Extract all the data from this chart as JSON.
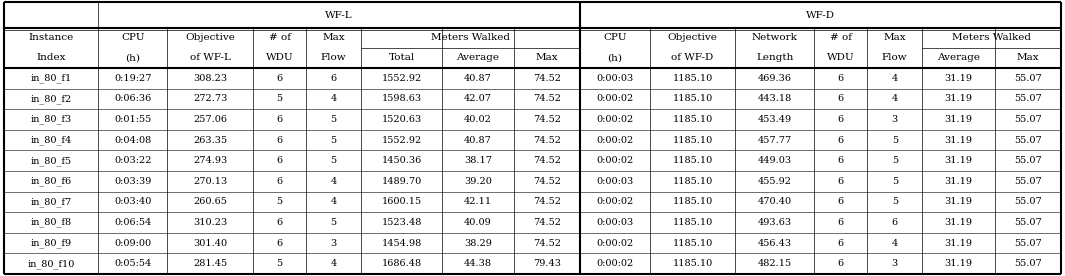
{
  "instances": [
    "in 80‑f1",
    "in 80‑f2",
    "in 80‑f3",
    "in 80‑f4",
    "in 80‑f5",
    "in 80‑f6",
    "in 80‑f7",
    "in 80‑f8",
    "in 80‑f9",
    "in 80‑f10"
  ],
  "inst_names": [
    "in_80_f1",
    "in_80_f2",
    "in_80_f3",
    "in_80_f4",
    "in_80_f5",
    "in_80_f6",
    "in_80_f7",
    "in_80_f8",
    "in_80_f9",
    "in_80_f10"
  ],
  "wfl_cpu": [
    "0:19:27",
    "0:06:36",
    "0:01:55",
    "0:04:08",
    "0:03:22",
    "0:03:39",
    "0:03:40",
    "0:06:54",
    "0:09:00",
    "0:05:54"
  ],
  "wfl_obj": [
    "308.23",
    "272.73",
    "257.06",
    "263.35",
    "274.93",
    "270.13",
    "260.65",
    "310.23",
    "301.40",
    "281.45"
  ],
  "wfl_wdu": [
    "6",
    "5",
    "6",
    "6",
    "6",
    "6",
    "5",
    "6",
    "6",
    "5"
  ],
  "wfl_flow": [
    "6",
    "4",
    "5",
    "5",
    "5",
    "4",
    "4",
    "5",
    "3",
    "4"
  ],
  "wfl_total": [
    "1552.92",
    "1598.63",
    "1520.63",
    "1552.92",
    "1450.36",
    "1489.70",
    "1600.15",
    "1523.48",
    "1454.98",
    "1686.48"
  ],
  "wfl_avg": [
    "40.87",
    "42.07",
    "40.02",
    "40.87",
    "38.17",
    "39.20",
    "42.11",
    "40.09",
    "38.29",
    "44.38"
  ],
  "wfl_max": [
    "74.52",
    "74.52",
    "74.52",
    "74.52",
    "74.52",
    "74.52",
    "74.52",
    "74.52",
    "74.52",
    "79.43"
  ],
  "wfd_cpu": [
    "0:00:03",
    "0:00:02",
    "0:00:02",
    "0:00:02",
    "0:00:02",
    "0:00:03",
    "0:00:02",
    "0:00:03",
    "0:00:02",
    "0:00:02"
  ],
  "wfd_obj": [
    "1185.10",
    "1185.10",
    "1185.10",
    "1185.10",
    "1185.10",
    "1185.10",
    "1185.10",
    "1185.10",
    "1185.10",
    "1185.10"
  ],
  "wfd_net": [
    "469.36",
    "443.18",
    "453.49",
    "457.77",
    "449.03",
    "455.92",
    "470.40",
    "493.63",
    "456.43",
    "482.15"
  ],
  "wfd_wdu": [
    "6",
    "6",
    "6",
    "6",
    "6",
    "6",
    "6",
    "6",
    "6",
    "6"
  ],
  "wfd_flow": [
    "4",
    "4",
    "3",
    "5",
    "5",
    "5",
    "5",
    "6",
    "4",
    "3"
  ],
  "wfd_avg": [
    "31.19",
    "31.19",
    "31.19",
    "31.19",
    "31.19",
    "31.19",
    "31.19",
    "31.19",
    "31.19",
    "31.19"
  ],
  "wfd_max": [
    "55.07",
    "55.07",
    "55.07",
    "55.07",
    "55.07",
    "55.07",
    "55.07",
    "55.07",
    "55.07",
    "55.07"
  ],
  "fig_width": 10.65,
  "fig_height": 2.76,
  "dpi": 100,
  "fs_header": 7.5,
  "fs_data": 7.0,
  "lw_thick": 1.5,
  "lw_thin": 0.5,
  "lw_data": 0.4
}
